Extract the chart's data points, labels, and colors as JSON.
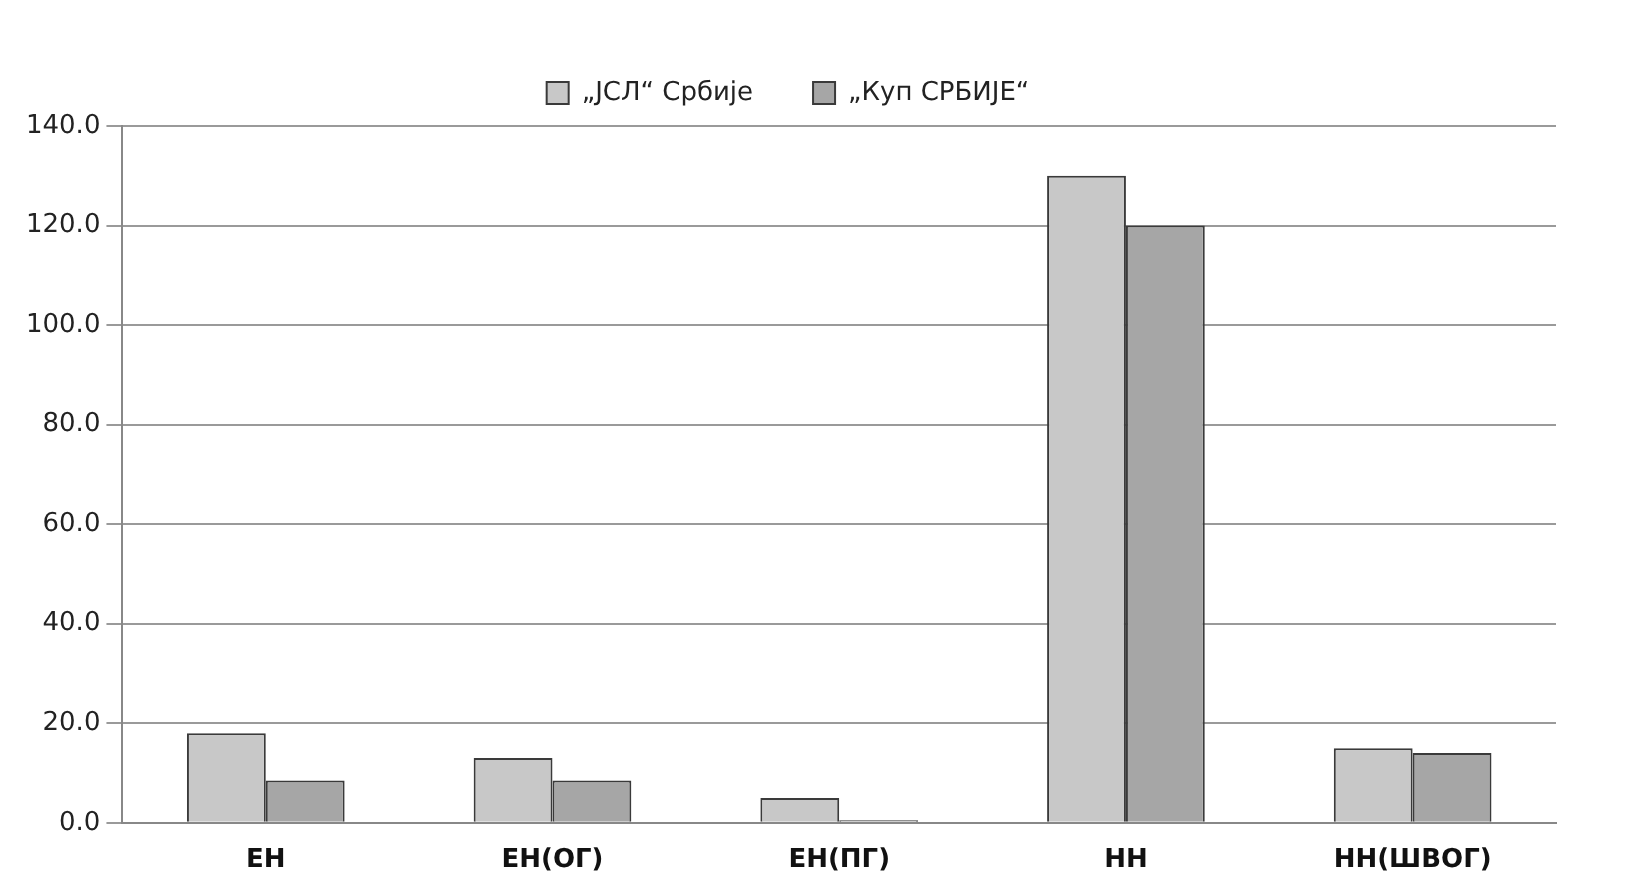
{
  "chart_data": {
    "type": "bar",
    "categories": [
      "ЕН",
      "ЕН(ОГ)",
      "ЕН(ПГ)",
      "НН",
      "НН(ШВОГ)"
    ],
    "series": [
      {
        "name": "„ЈСЛ“ Србије",
        "color": "#c8c8c8",
        "values": [
          18,
          13,
          5,
          130,
          15
        ]
      },
      {
        "name": "„Куп СРБИЈЕ“",
        "color": "#a6a6a6",
        "values": [
          8.5,
          8.5,
          0.5,
          120,
          14
        ]
      }
    ],
    "ylim": [
      0,
      140
    ],
    "yticks": [
      {
        "value": 0,
        "label": "0.0"
      },
      {
        "value": 20,
        "label": "20.0"
      },
      {
        "value": 40,
        "label": "40.0"
      },
      {
        "value": 60,
        "label": "60.0"
      },
      {
        "value": 80,
        "label": "80.0"
      },
      {
        "value": 100,
        "label": "100.0"
      },
      {
        "value": 120,
        "label": "120.0"
      },
      {
        "value": 140,
        "label": "140.0"
      }
    ],
    "grid": "y",
    "legend": "top"
  }
}
